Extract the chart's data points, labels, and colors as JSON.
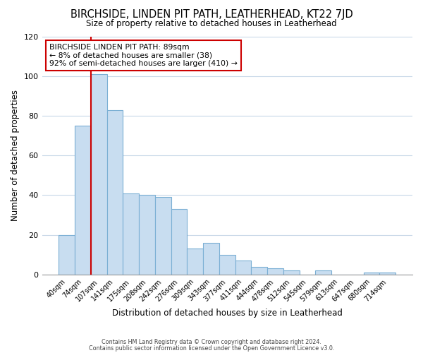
{
  "title": "BIRCHSIDE, LINDEN PIT PATH, LEATHERHEAD, KT22 7JD",
  "subtitle": "Size of property relative to detached houses in Leatherhead",
  "xlabel": "Distribution of detached houses by size in Leatherhead",
  "ylabel": "Number of detached properties",
  "bar_labels": [
    "40sqm",
    "74sqm",
    "107sqm",
    "141sqm",
    "175sqm",
    "208sqm",
    "242sqm",
    "276sqm",
    "309sqm",
    "343sqm",
    "377sqm",
    "411sqm",
    "444sqm",
    "478sqm",
    "512sqm",
    "545sqm",
    "579sqm",
    "613sqm",
    "647sqm",
    "680sqm",
    "714sqm"
  ],
  "bar_values": [
    20,
    75,
    101,
    83,
    41,
    40,
    39,
    33,
    13,
    16,
    10,
    7,
    4,
    3,
    2,
    0,
    2,
    0,
    0,
    1,
    1
  ],
  "bar_color": "#c8ddf0",
  "bar_edge_color": "#7bafd4",
  "ylim": [
    0,
    120
  ],
  "yticks": [
    0,
    20,
    40,
    60,
    80,
    100,
    120
  ],
  "annotation_title": "BIRCHSIDE LINDEN PIT PATH: 89sqm",
  "annotation_line1": "← 8% of detached houses are smaller (38)",
  "annotation_line2": "92% of semi-detached houses are larger (410) →",
  "annotation_box_color": "#ffffff",
  "annotation_box_edge": "#cc0000",
  "red_line_bar_index": 1,
  "footer1": "Contains HM Land Registry data © Crown copyright and database right 2024.",
  "footer2": "Contains public sector information licensed under the Open Government Licence v3.0.",
  "background_color": "#ffffff",
  "grid_color": "#c8d8e8"
}
